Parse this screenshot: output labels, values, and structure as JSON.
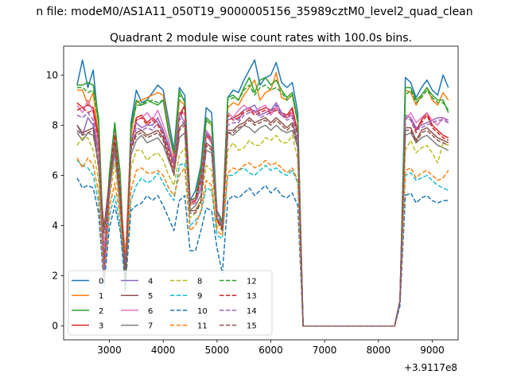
{
  "figure": {
    "suptitle": "n file: modeM0/AS1A11_050T19_9000005156_35989cztM0_level2_quad_clean",
    "offset_label": "+3.9117e8"
  },
  "chart_data": {
    "type": "line",
    "title": "Quadrant 2 module wise count rates with 100.0s bins.",
    "xlabel": "",
    "ylabel": "",
    "xlim": [
      2150,
      9480
    ],
    "ylim": [
      -0.55,
      11.15
    ],
    "xticks": [
      3000,
      4000,
      5000,
      6000,
      7000,
      8000,
      9000
    ],
    "yticks": [
      0,
      2,
      4,
      6,
      8,
      10
    ],
    "grid": false,
    "legend_position": "lower-left",
    "legend_columns": 4,
    "x": [
      2400,
      2500,
      2600,
      2700,
      2800,
      2900,
      3000,
      3100,
      3200,
      3300,
      3400,
      3500,
      3600,
      3700,
      3800,
      3900,
      4000,
      4100,
      4200,
      4300,
      4400,
      4500,
      4600,
      4700,
      4800,
      4900,
      5000,
      5100,
      5200,
      5300,
      5400,
      5500,
      5600,
      5700,
      5800,
      5900,
      6000,
      6100,
      6200,
      6300,
      6400,
      6500,
      6600,
      6700,
      6800,
      6900,
      7000,
      7100,
      7200,
      7300,
      7400,
      7500,
      7600,
      7700,
      7800,
      7900,
      8000,
      8100,
      8200,
      8300,
      8400,
      8500,
      8600,
      8700,
      8800,
      8900,
      9000,
      9100,
      9200,
      9300
    ],
    "series": [
      {
        "name": "0",
        "color": "#1f77b4",
        "dash": "solid",
        "values": [
          9.6,
          10.6,
          9.5,
          10.2,
          8.0,
          1.7,
          5.8,
          8.1,
          5.5,
          1.4,
          8.1,
          9.4,
          8.9,
          9.0,
          9.3,
          9.6,
          9.4,
          8.2,
          7.0,
          9.5,
          9.2,
          5.0,
          5.4,
          6.4,
          8.7,
          8.5,
          4.5,
          4.2,
          9.1,
          9.4,
          9.3,
          9.8,
          10.2,
          10.6,
          9.6,
          9.9,
          10.0,
          10.5,
          9.7,
          9.5,
          9.7,
          8.5,
          0,
          0,
          0,
          0,
          0,
          0,
          0,
          0,
          0,
          0,
          0,
          0,
          0,
          0,
          0,
          0,
          0,
          0,
          1.0,
          9.9,
          9.7,
          9.1,
          9.5,
          9.8,
          9.4,
          9.2,
          10.0,
          9.5
        ]
      },
      {
        "name": "1",
        "color": "#ff7f0e",
        "dash": "solid",
        "values": [
          9.4,
          9.4,
          8.8,
          9.3,
          7.5,
          3.0,
          5.8,
          7.9,
          5.2,
          2.8,
          7.6,
          8.9,
          9.0,
          9.1,
          9.2,
          9.3,
          9.2,
          7.9,
          6.7,
          9.0,
          8.8,
          4.8,
          5.0,
          6.0,
          8.2,
          8.0,
          4.2,
          4.0,
          8.7,
          8.9,
          8.8,
          9.2,
          9.5,
          9.8,
          9.0,
          9.3,
          9.4,
          10.1,
          9.1,
          9.0,
          9.2,
          8.1,
          0,
          0,
          0,
          0,
          0,
          0,
          0,
          0,
          0,
          0,
          0,
          0,
          0,
          0,
          0,
          0,
          0,
          0,
          1.0,
          9.4,
          9.3,
          8.8,
          9.2,
          9.5,
          9.0,
          8.8,
          9.3,
          9.0
        ]
      },
      {
        "name": "2",
        "color": "#2ca02c",
        "dash": "solid",
        "values": [
          9.6,
          9.6,
          9.7,
          9.6,
          8.3,
          2.8,
          6.1,
          8.1,
          6.1,
          1.5,
          7.9,
          9.0,
          8.8,
          9.0,
          8.9,
          8.8,
          9.0,
          7.7,
          6.9,
          9.4,
          8.9,
          5.0,
          5.1,
          6.3,
          8.3,
          8.1,
          4.6,
          4.2,
          9.1,
          9.2,
          9.0,
          9.5,
          9.9,
          9.3,
          9.8,
          9.9,
          9.6,
          9.8,
          9.4,
          9.1,
          9.3,
          8.2,
          0,
          0,
          0,
          0,
          0,
          0,
          0,
          0,
          0,
          0,
          0,
          0,
          0,
          0,
          0,
          0,
          0,
          0,
          1.0,
          9.5,
          9.5,
          9.0,
          9.2,
          9.5,
          9.2,
          9.0,
          9.0,
          8.5
        ]
      },
      {
        "name": "3",
        "color": "#d62728",
        "dash": "solid",
        "values": [
          8.9,
          8.7,
          8.8,
          8.7,
          7.5,
          2.5,
          5.7,
          7.7,
          5.5,
          2.3,
          7.3,
          8.3,
          8.4,
          8.1,
          8.3,
          8.1,
          7.7,
          7.1,
          6.4,
          8.4,
          8.8,
          5.0,
          5.1,
          5.9,
          7.7,
          7.4,
          4.3,
          4.0,
          8.5,
          8.3,
          8.4,
          8.6,
          8.7,
          8.5,
          8.6,
          8.7,
          8.6,
          8.7,
          8.5,
          8.4,
          8.7,
          7.7,
          0,
          0,
          0,
          0,
          0,
          0,
          0,
          0,
          0,
          0,
          0,
          0,
          0,
          0,
          0,
          0,
          0,
          0,
          1.0,
          8.4,
          8.3,
          7.8,
          8.2,
          8.5,
          8.0,
          7.8,
          7.6,
          7.5
        ]
      },
      {
        "name": "4",
        "color": "#9467bd",
        "dash": "solid",
        "values": [
          8.0,
          7.6,
          8.3,
          8.0,
          6.9,
          2.2,
          5.2,
          7.4,
          4.7,
          2.2,
          7.3,
          8.1,
          7.9,
          8.0,
          8.0,
          8.3,
          7.8,
          7.2,
          6.6,
          8.5,
          8.1,
          4.9,
          5.0,
          5.5,
          7.7,
          7.5,
          4.6,
          4.0,
          8.2,
          8.3,
          8.2,
          8.6,
          8.7,
          8.8,
          8.4,
          8.5,
          8.6,
          8.9,
          8.5,
          8.3,
          8.4,
          7.6,
          0,
          0,
          0,
          0,
          0,
          0,
          0,
          0,
          0,
          0,
          0,
          0,
          0,
          0,
          0,
          0,
          0,
          0,
          1.0,
          8.4,
          8.3,
          7.9,
          8.0,
          8.1,
          8.2,
          8.3,
          8.3,
          8.2
        ]
      },
      {
        "name": "5",
        "color": "#8c564b",
        "dash": "solid",
        "values": [
          8.0,
          7.7,
          7.8,
          7.9,
          6.4,
          3.9,
          5.8,
          7.3,
          5.2,
          1.8,
          7.1,
          7.7,
          7.8,
          7.6,
          7.7,
          7.8,
          7.5,
          6.8,
          6.1,
          7.9,
          8.1,
          4.6,
          4.6,
          5.0,
          7.3,
          7.1,
          4.3,
          3.9,
          7.8,
          7.8,
          8.0,
          8.1,
          8.3,
          8.1,
          8.2,
          8.3,
          8.1,
          8.3,
          8.1,
          7.9,
          8.1,
          7.3,
          0,
          0,
          0,
          0,
          0,
          0,
          0,
          0,
          0,
          0,
          0,
          0,
          0,
          0,
          0,
          0,
          0,
          0,
          1.0,
          7.9,
          7.9,
          7.4,
          7.8,
          7.9,
          7.7,
          7.5,
          7.4,
          7.3
        ]
      },
      {
        "name": "6",
        "color": "#e377c2",
        "dash": "solid",
        "values": [
          8.8,
          8.5,
          9.0,
          8.5,
          7.0,
          3.0,
          5.5,
          7.8,
          5.5,
          2.3,
          7.4,
          8.2,
          8.3,
          8.5,
          8.2,
          8.6,
          8.0,
          7.4,
          6.4,
          8.4,
          8.5,
          5.0,
          5.0,
          5.8,
          7.8,
          7.5,
          4.5,
          4.1,
          8.5,
          8.3,
          8.6,
          8.8,
          8.6,
          8.5,
          8.7,
          8.8,
          8.4,
          8.7,
          8.4,
          8.3,
          8.5,
          7.6,
          0,
          0,
          0,
          0,
          0,
          0,
          0,
          0,
          0,
          0,
          0,
          0,
          0,
          0,
          0,
          0,
          0,
          0,
          1.0,
          8.2,
          8.5,
          8.1,
          8.3,
          8.5,
          8.2,
          8.0,
          8.3,
          8.1
        ]
      },
      {
        "name": "7",
        "color": "#7f7f7f",
        "dash": "solid",
        "values": [
          7.7,
          7.4,
          7.7,
          7.6,
          6.5,
          2.0,
          5.4,
          6.9,
          4.9,
          2.4,
          6.8,
          7.4,
          7.6,
          7.3,
          7.4,
          7.5,
          7.2,
          6.6,
          6.1,
          7.5,
          7.7,
          4.6,
          4.8,
          5.2,
          7.0,
          6.9,
          4.3,
          4.0,
          7.7,
          7.6,
          7.8,
          8.0,
          7.9,
          7.7,
          7.9,
          8.0,
          7.8,
          8.0,
          7.8,
          7.7,
          7.8,
          7.1,
          0,
          0,
          0,
          0,
          0,
          0,
          0,
          0,
          0,
          0,
          0,
          0,
          0,
          0,
          0,
          0,
          0,
          0,
          1.0,
          7.6,
          7.7,
          7.3,
          7.5,
          7.6,
          7.4,
          7.2,
          7.1,
          7.0
        ]
      },
      {
        "name": "8",
        "color": "#bcbd22",
        "dash": "dashed",
        "values": [
          7.2,
          7.5,
          7.5,
          7.0,
          5.8,
          2.2,
          5.0,
          6.5,
          4.4,
          2.0,
          6.3,
          7.0,
          7.0,
          6.6,
          6.8,
          6.9,
          6.6,
          6.0,
          5.6,
          6.8,
          7.1,
          4.3,
          4.5,
          5.0,
          6.4,
          6.2,
          4.0,
          3.8,
          7.0,
          7.3,
          7.0,
          7.1,
          7.4,
          7.2,
          7.2,
          7.5,
          7.4,
          7.6,
          7.3,
          7.3,
          7.6,
          6.6,
          0,
          0,
          0,
          0,
          0,
          0,
          0,
          0,
          0,
          0,
          0,
          0,
          0,
          0,
          0,
          0,
          0,
          0,
          1.0,
          7.0,
          7.4,
          6.9,
          7.1,
          7.2,
          6.9,
          6.5,
          7.3,
          7.2
        ]
      },
      {
        "name": "9",
        "color": "#17becf",
        "dash": "dashed",
        "values": [
          6.6,
          6.4,
          6.3,
          6.0,
          4.9,
          1.8,
          4.4,
          5.2,
          4.0,
          1.8,
          5.0,
          5.6,
          5.9,
          5.7,
          5.8,
          6.1,
          5.7,
          5.3,
          5.0,
          6.4,
          6.5,
          4.0,
          4.2,
          4.5,
          5.5,
          5.4,
          3.6,
          3.5,
          6.0,
          6.0,
          6.2,
          6.3,
          6.1,
          6.0,
          6.2,
          6.4,
          6.2,
          6.3,
          6.1,
          6.0,
          6.2,
          5.7,
          0,
          0,
          0,
          0,
          0,
          0,
          0,
          0,
          0,
          0,
          0,
          0,
          0,
          0,
          0,
          0,
          0,
          0,
          1.0,
          6.0,
          6.1,
          5.8,
          5.9,
          6.0,
          5.8,
          5.6,
          5.5,
          5.4
        ]
      },
      {
        "name": "10",
        "color": "#1f77b4",
        "dash": "dashed",
        "values": [
          5.9,
          5.5,
          5.6,
          5.5,
          4.5,
          1.6,
          3.9,
          4.8,
          3.8,
          1.6,
          4.6,
          4.8,
          4.9,
          5.2,
          5.0,
          5.2,
          4.8,
          4.3,
          3.8,
          5.0,
          5.2,
          3.0,
          3.0,
          3.8,
          4.7,
          4.6,
          3.1,
          2.1,
          5.0,
          5.2,
          5.1,
          5.3,
          5.5,
          5.2,
          5.4,
          5.6,
          5.3,
          5.5,
          5.2,
          5.1,
          5.3,
          4.8,
          0,
          0,
          0,
          0,
          0,
          0,
          0,
          0,
          0,
          0,
          0,
          0,
          0,
          0,
          0,
          0,
          0,
          0,
          0.8,
          5.2,
          5.3,
          4.9,
          5.1,
          5.2,
          5.0,
          4.9,
          5.0,
          5.0
        ]
      },
      {
        "name": "11",
        "color": "#ff7f0e",
        "dash": "dashed",
        "values": [
          6.7,
          6.3,
          6.7,
          6.4,
          5.3,
          1.9,
          4.7,
          5.7,
          4.4,
          2.0,
          5.4,
          6.2,
          6.3,
          6.1,
          6.1,
          6.2,
          6.0,
          5.5,
          5.2,
          6.0,
          6.3,
          3.8,
          4.0,
          4.6,
          5.8,
          5.6,
          3.8,
          3.6,
          6.1,
          6.3,
          6.2,
          6.4,
          6.5,
          6.3,
          6.4,
          6.6,
          6.4,
          6.5,
          6.3,
          6.1,
          6.3,
          5.8,
          0,
          0,
          0,
          0,
          0,
          0,
          0,
          0,
          0,
          0,
          0,
          0,
          0,
          0,
          0,
          0,
          0,
          0,
          1.0,
          6.2,
          6.3,
          5.9,
          6.1,
          6.2,
          6.0,
          5.8,
          5.9,
          6.2
        ]
      },
      {
        "name": "12",
        "color": "#2ca02c",
        "dash": "dashed",
        "values": [
          9.5,
          9.5,
          9.3,
          9.4,
          8.1,
          2.3,
          6.0,
          7.9,
          5.8,
          1.6,
          7.8,
          8.8,
          8.8,
          8.9,
          9.0,
          8.9,
          9.0,
          7.8,
          6.9,
          9.2,
          9.0,
          5.0,
          5.1,
          6.2,
          8.2,
          8.0,
          4.5,
          4.1,
          9.0,
          9.1,
          9.0,
          9.4,
          9.6,
          9.2,
          9.5,
          9.6,
          9.4,
          9.5,
          9.3,
          9.0,
          9.2,
          8.1,
          0,
          0,
          0,
          0,
          0,
          0,
          0,
          0,
          0,
          0,
          0,
          0,
          0,
          0,
          0,
          0,
          0,
          0,
          1.0,
          9.2,
          9.4,
          8.9,
          9.1,
          9.4,
          9.1,
          8.9,
          8.9,
          8.6
        ]
      },
      {
        "name": "13",
        "color": "#d62728",
        "dash": "dashed",
        "values": [
          8.6,
          8.7,
          8.5,
          8.6,
          7.4,
          2.4,
          5.6,
          7.6,
          5.4,
          2.2,
          7.2,
          8.2,
          8.3,
          8.0,
          8.2,
          8.0,
          7.6,
          7.0,
          6.3,
          8.3,
          8.7,
          4.9,
          5.0,
          5.8,
          7.6,
          7.3,
          4.2,
          3.9,
          8.4,
          8.2,
          8.3,
          8.5,
          8.6,
          8.4,
          8.5,
          8.6,
          8.5,
          8.6,
          8.4,
          8.3,
          8.6,
          7.6,
          0,
          0,
          0,
          0,
          0,
          0,
          0,
          0,
          0,
          0,
          0,
          0,
          0,
          0,
          0,
          0,
          0,
          0,
          1.0,
          8.3,
          8.2,
          7.7,
          8.1,
          8.4,
          7.9,
          7.7,
          7.5,
          7.4
        ]
      },
      {
        "name": "14",
        "color": "#9467bd",
        "dash": "dashed",
        "values": [
          8.4,
          8.3,
          8.5,
          8.2,
          6.8,
          2.2,
          5.3,
          7.2,
          4.8,
          2.3,
          7.1,
          7.9,
          7.8,
          7.9,
          7.8,
          8.1,
          7.7,
          7.1,
          6.5,
          8.3,
          8.0,
          4.8,
          4.9,
          5.5,
          7.6,
          7.3,
          4.5,
          4.0,
          8.0,
          8.1,
          8.1,
          8.4,
          8.5,
          8.6,
          8.3,
          8.4,
          8.5,
          8.8,
          8.4,
          8.2,
          8.3,
          7.5,
          0,
          0,
          0,
          0,
          0,
          0,
          0,
          0,
          0,
          0,
          0,
          0,
          0,
          0,
          0,
          0,
          0,
          0,
          1.0,
          8.3,
          8.2,
          7.8,
          7.9,
          8.0,
          8.1,
          8.2,
          8.2,
          8.1
        ]
      },
      {
        "name": "15",
        "color": "#8c564b",
        "dash": "dashed",
        "values": [
          7.8,
          7.6,
          7.7,
          7.8,
          6.3,
          3.7,
          5.7,
          7.2,
          5.1,
          1.9,
          7.0,
          7.6,
          7.7,
          7.5,
          7.6,
          7.7,
          7.4,
          6.7,
          6.0,
          7.8,
          8.0,
          4.5,
          4.5,
          4.9,
          7.2,
          7.0,
          4.2,
          3.8,
          7.7,
          7.7,
          7.9,
          8.0,
          8.2,
          8.0,
          8.1,
          8.2,
          8.0,
          8.2,
          8.0,
          7.8,
          8.0,
          7.2,
          0,
          0,
          0,
          0,
          0,
          0,
          0,
          0,
          0,
          0,
          0,
          0,
          0,
          0,
          0,
          0,
          0,
          0,
          1.0,
          7.8,
          7.8,
          7.3,
          7.7,
          7.8,
          7.6,
          7.4,
          7.3,
          7.2
        ]
      }
    ]
  }
}
